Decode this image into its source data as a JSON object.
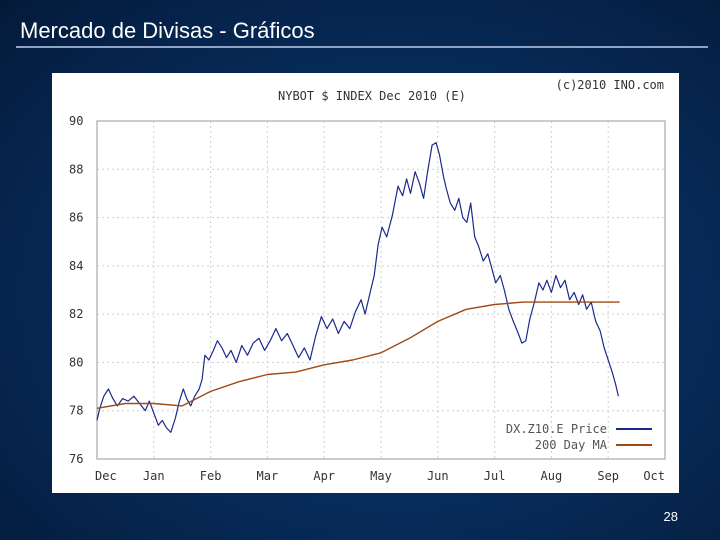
{
  "slide": {
    "title": "Mercado de Divisas - Gráficos",
    "page_number": "28"
  },
  "chart_data": {
    "type": "line",
    "title": "NYBOT $ INDEX Dec 2010 (E)",
    "copyright": "(c)2010 INO.com",
    "x_tick_labels": [
      "Dec",
      "Jan",
      "Feb",
      "Mar",
      "Apr",
      "May",
      "Jun",
      "Jul",
      "Aug",
      "Sep",
      "Oct"
    ],
    "y_ticks": [
      76,
      78,
      80,
      82,
      84,
      86,
      88,
      90
    ],
    "ylim": [
      76,
      90
    ],
    "xlim": [
      0,
      10
    ],
    "grid": true,
    "legend_position": "bottom-right",
    "series": [
      {
        "name": "DX.Z10.E Price",
        "color": "#1c2a8c",
        "points": [
          [
            0.0,
            77.6
          ],
          [
            0.05,
            78.1
          ],
          [
            0.12,
            78.6
          ],
          [
            0.2,
            78.9
          ],
          [
            0.28,
            78.5
          ],
          [
            0.36,
            78.2
          ],
          [
            0.45,
            78.5
          ],
          [
            0.55,
            78.4
          ],
          [
            0.65,
            78.6
          ],
          [
            0.75,
            78.3
          ],
          [
            0.85,
            78.0
          ],
          [
            0.92,
            78.4
          ],
          [
            1.0,
            77.9
          ],
          [
            1.08,
            77.4
          ],
          [
            1.15,
            77.6
          ],
          [
            1.22,
            77.3
          ],
          [
            1.3,
            77.1
          ],
          [
            1.38,
            77.7
          ],
          [
            1.45,
            78.4
          ],
          [
            1.52,
            78.9
          ],
          [
            1.58,
            78.5
          ],
          [
            1.65,
            78.2
          ],
          [
            1.72,
            78.6
          ],
          [
            1.8,
            78.9
          ],
          [
            1.85,
            79.3
          ],
          [
            1.9,
            80.3
          ],
          [
            1.97,
            80.1
          ],
          [
            2.05,
            80.5
          ],
          [
            2.12,
            80.9
          ],
          [
            2.2,
            80.6
          ],
          [
            2.28,
            80.2
          ],
          [
            2.36,
            80.5
          ],
          [
            2.45,
            80.0
          ],
          [
            2.55,
            80.7
          ],
          [
            2.65,
            80.3
          ],
          [
            2.75,
            80.8
          ],
          [
            2.85,
            81.0
          ],
          [
            2.95,
            80.5
          ],
          [
            3.05,
            80.9
          ],
          [
            3.15,
            81.4
          ],
          [
            3.25,
            80.9
          ],
          [
            3.35,
            81.2
          ],
          [
            3.45,
            80.7
          ],
          [
            3.55,
            80.2
          ],
          [
            3.65,
            80.6
          ],
          [
            3.75,
            80.1
          ],
          [
            3.85,
            81.1
          ],
          [
            3.95,
            81.9
          ],
          [
            4.05,
            81.4
          ],
          [
            4.15,
            81.8
          ],
          [
            4.25,
            81.2
          ],
          [
            4.35,
            81.7
          ],
          [
            4.45,
            81.4
          ],
          [
            4.55,
            82.1
          ],
          [
            4.65,
            82.6
          ],
          [
            4.72,
            82.0
          ],
          [
            4.8,
            82.8
          ],
          [
            4.88,
            83.6
          ],
          [
            4.95,
            84.9
          ],
          [
            5.02,
            85.6
          ],
          [
            5.1,
            85.2
          ],
          [
            5.2,
            86.1
          ],
          [
            5.3,
            87.3
          ],
          [
            5.38,
            86.9
          ],
          [
            5.45,
            87.6
          ],
          [
            5.52,
            87.0
          ],
          [
            5.6,
            87.9
          ],
          [
            5.68,
            87.4
          ],
          [
            5.75,
            86.8
          ],
          [
            5.82,
            87.9
          ],
          [
            5.9,
            89.0
          ],
          [
            5.97,
            89.1
          ],
          [
            6.03,
            88.6
          ],
          [
            6.1,
            87.7
          ],
          [
            6.15,
            87.2
          ],
          [
            6.22,
            86.6
          ],
          [
            6.3,
            86.3
          ],
          [
            6.37,
            86.8
          ],
          [
            6.44,
            86.0
          ],
          [
            6.51,
            85.8
          ],
          [
            6.58,
            86.6
          ],
          [
            6.65,
            85.2
          ],
          [
            6.72,
            84.8
          ],
          [
            6.8,
            84.2
          ],
          [
            6.88,
            84.5
          ],
          [
            6.95,
            83.9
          ],
          [
            7.02,
            83.3
          ],
          [
            7.1,
            83.6
          ],
          [
            7.17,
            83.0
          ],
          [
            7.25,
            82.2
          ],
          [
            7.33,
            81.7
          ],
          [
            7.4,
            81.3
          ],
          [
            7.48,
            80.8
          ],
          [
            7.55,
            80.9
          ],
          [
            7.62,
            81.8
          ],
          [
            7.7,
            82.5
          ],
          [
            7.78,
            83.3
          ],
          [
            7.85,
            83.0
          ],
          [
            7.92,
            83.4
          ],
          [
            8.0,
            82.9
          ],
          [
            8.08,
            83.6
          ],
          [
            8.16,
            83.1
          ],
          [
            8.24,
            83.4
          ],
          [
            8.32,
            82.6
          ],
          [
            8.4,
            82.9
          ],
          [
            8.48,
            82.4
          ],
          [
            8.55,
            82.8
          ],
          [
            8.62,
            82.2
          ],
          [
            8.7,
            82.5
          ],
          [
            8.78,
            81.7
          ],
          [
            8.86,
            81.3
          ],
          [
            8.93,
            80.6
          ],
          [
            9.0,
            80.1
          ],
          [
            9.07,
            79.6
          ],
          [
            9.13,
            79.1
          ],
          [
            9.18,
            78.6
          ]
        ]
      },
      {
        "name": "200 Day MA",
        "color": "#a04a14",
        "points": [
          [
            0.0,
            78.1
          ],
          [
            0.5,
            78.3
          ],
          [
            1.0,
            78.3
          ],
          [
            1.5,
            78.2
          ],
          [
            2.0,
            78.8
          ],
          [
            2.5,
            79.2
          ],
          [
            3.0,
            79.5
          ],
          [
            3.5,
            79.6
          ],
          [
            4.0,
            79.9
          ],
          [
            4.5,
            80.1
          ],
          [
            5.0,
            80.4
          ],
          [
            5.5,
            81.0
          ],
          [
            6.0,
            81.7
          ],
          [
            6.5,
            82.2
          ],
          [
            7.0,
            82.4
          ],
          [
            7.5,
            82.5
          ],
          [
            8.0,
            82.5
          ],
          [
            8.5,
            82.5
          ],
          [
            9.0,
            82.5
          ],
          [
            9.2,
            82.5
          ]
        ]
      }
    ]
  }
}
